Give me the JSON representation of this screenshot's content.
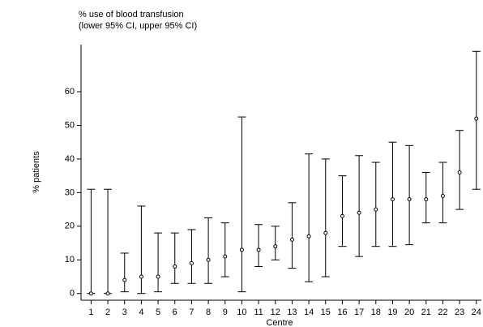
{
  "chart_data": {
    "type": "errorbar",
    "title": "% use of blood transfusion",
    "subtitle": "(lower 95% CI, upper 95% CI)",
    "x_label": "Centre",
    "y_label": "% patients",
    "x": [
      1,
      2,
      3,
      4,
      5,
      6,
      7,
      8,
      9,
      10,
      11,
      12,
      13,
      14,
      15,
      16,
      17,
      18,
      19,
      20,
      21,
      22,
      23,
      24
    ],
    "values": [
      0,
      0,
      4,
      5,
      5,
      8,
      9,
      10,
      11,
      13,
      13,
      14,
      16,
      17,
      18,
      23,
      24,
      25,
      28,
      28,
      28,
      29,
      36,
      52
    ],
    "lower": [
      0,
      0,
      0.5,
      0,
      0.5,
      3,
      3,
      3,
      5,
      0.5,
      8,
      10,
      7.5,
      3.5,
      5,
      14,
      11,
      14,
      14,
      14.5,
      21,
      21,
      25,
      31
    ],
    "upper": [
      31,
      31,
      12,
      26,
      18,
      18,
      19,
      22.5,
      21,
      52.5,
      20.5,
      20,
      27,
      41.5,
      40,
      35,
      41,
      39,
      45,
      44,
      36,
      39,
      48.5,
      72
    ],
    "xlim": [
      0.4,
      24.3
    ],
    "ylim": [
      -2,
      74
    ],
    "xticks": [
      1,
      2,
      3,
      4,
      5,
      6,
      7,
      8,
      9,
      10,
      11,
      12,
      13,
      14,
      15,
      16,
      17,
      18,
      19,
      20,
      21,
      22,
      23,
      24
    ],
    "yticks": [
      0,
      10,
      20,
      30,
      40,
      50,
      60
    ],
    "color": "#000000"
  }
}
